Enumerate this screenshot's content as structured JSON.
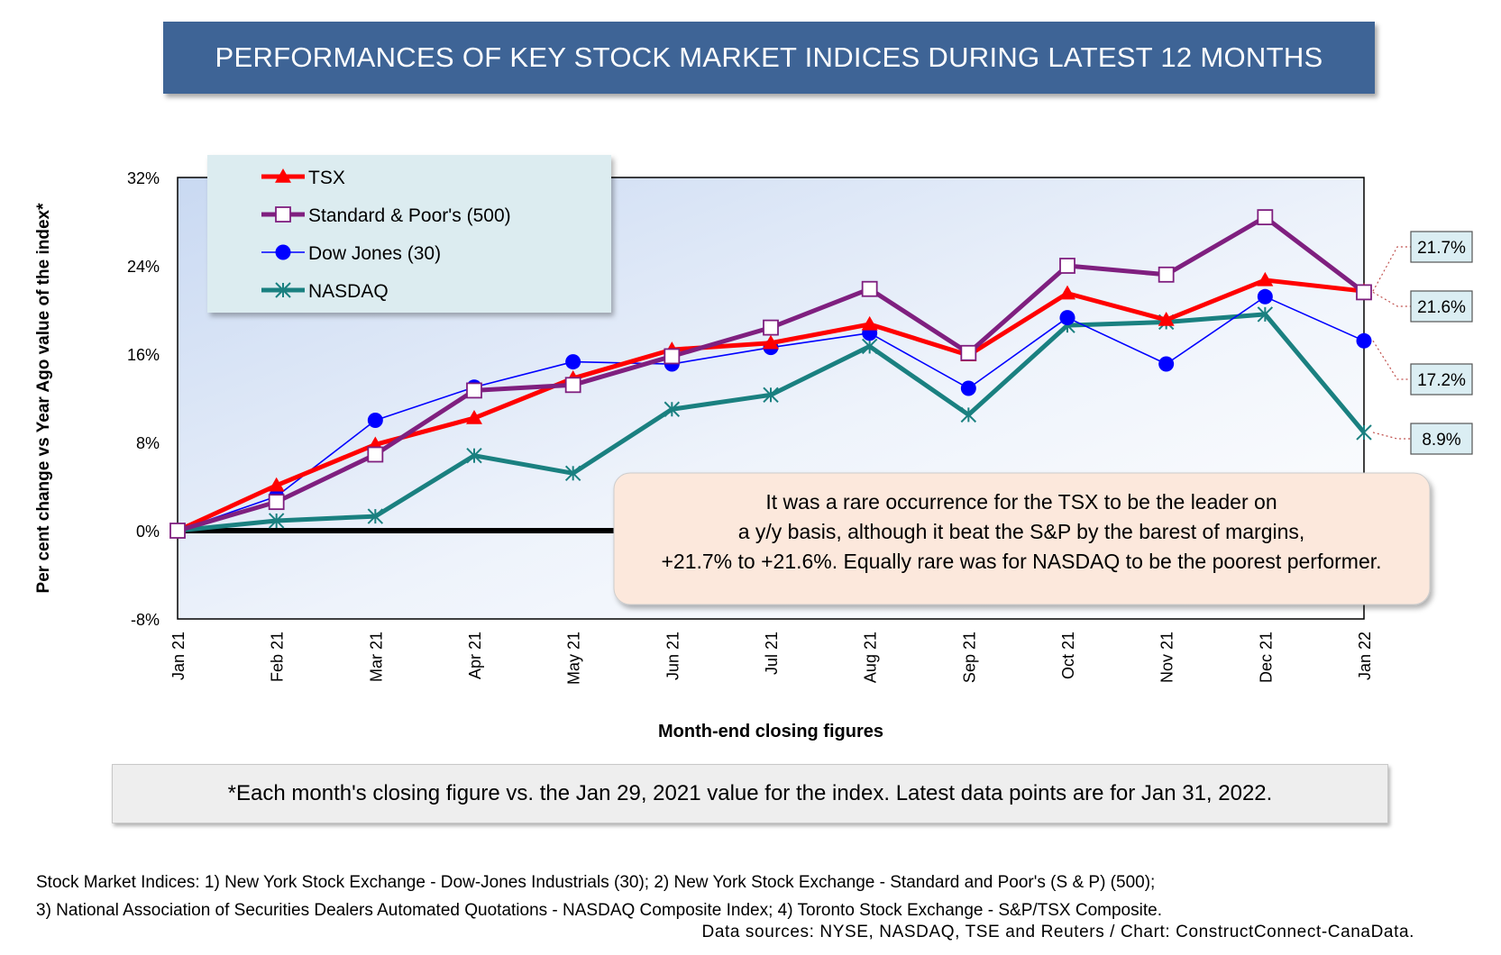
{
  "title": "PERFORMANCES OF KEY STOCK MARKET INDICES DURING LATEST 12 MONTHS",
  "chart_data": {
    "type": "line",
    "ylabel": "Per cent change vs Year Ago value of the index*",
    "xlabel": "Month-end closing figures",
    "ylim": [
      -8,
      32
    ],
    "yticks": [
      "-8%",
      "0%",
      "8%",
      "16%",
      "24%",
      "32%"
    ],
    "ytick_values": [
      -8,
      0,
      8,
      16,
      24,
      32
    ],
    "categories": [
      "Jan 21",
      "Feb 21",
      "Mar 21",
      "Apr 21",
      "May 21",
      "Jun 21",
      "Jul 21",
      "Aug 21",
      "Sep 21",
      "Oct 21",
      "Nov 21",
      "Dec 21",
      "Jan 22"
    ],
    "legend_position": "top-left",
    "series": [
      {
        "name": "TSX",
        "color": "#ff0000",
        "marker": "triangle",
        "values": [
          0,
          4.1,
          7.8,
          10.2,
          13.8,
          16.4,
          17.0,
          18.7,
          15.9,
          21.5,
          19.1,
          22.7,
          21.7
        ]
      },
      {
        "name": "Standard & Poor's (500)",
        "color": "#7f1f7f",
        "marker": "square",
        "values": [
          0,
          2.6,
          6.9,
          12.7,
          13.2,
          15.8,
          18.4,
          21.9,
          16.1,
          24.0,
          23.2,
          28.4,
          21.6
        ]
      },
      {
        "name": "Dow Jones (30)",
        "color": "#0000ff",
        "marker": "circle",
        "values": [
          0,
          3.1,
          10.0,
          13.0,
          15.3,
          15.1,
          16.6,
          17.9,
          12.9,
          19.3,
          15.1,
          21.2,
          17.2
        ]
      },
      {
        "name": "NASDAQ",
        "color": "#1a8080",
        "marker": "star",
        "values": [
          0,
          0.9,
          1.3,
          6.8,
          5.2,
          11.0,
          12.3,
          16.7,
          10.5,
          18.6,
          18.9,
          19.6,
          8.9
        ]
      }
    ],
    "end_labels": [
      "21.7%",
      "21.6%",
      "17.2%",
      "8.9%"
    ],
    "annotation": "It was a rare occurrence for the TSX to be the leader on a y/y basis, although it beat the S&P by the barest of margins, +21.7% to +21.6%. Equally rare was for NASDAQ to be the poorest performer."
  },
  "footnote": "*Each month's closing figure vs. the Jan 29, 2021 value for the index. Latest data points are for Jan 31, 2022.",
  "sources_line1": "Stock Market Indices: 1) New York Stock Exchange - Dow-Jones Industrials (30); 2) New York Stock Exchange - Standard and Poor's (S & P) (500);",
  "sources_line2": "3) National Association of Securities Dealers Automated Quotations - NASDAQ Composite Index; 4) Toronto Stock Exchange - S&P/TSX Composite.",
  "credit": "Data sources: NYSE, NASDAQ, TSE and Reuters / Chart: ConstructConnect-CanaData."
}
